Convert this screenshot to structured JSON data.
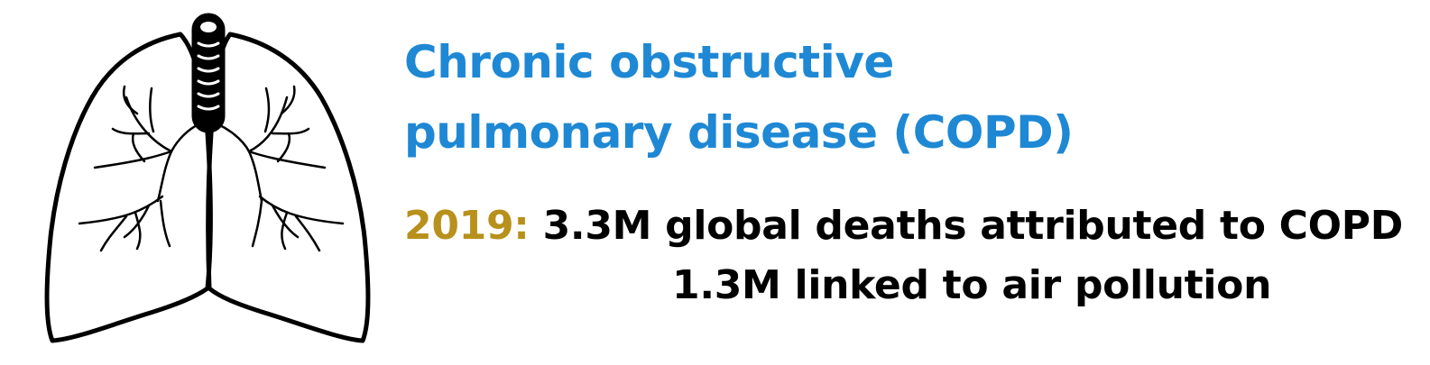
{
  "colors": {
    "title": "#1e88d4",
    "year": "#b8901c",
    "text": "#000000",
    "outline": "#000000"
  },
  "illustration": {
    "icon": "lungs-icon"
  },
  "title": {
    "line1": "Chronic obstructive",
    "line2": "pulmonary disease (COPD)"
  },
  "stats": {
    "year": "2019:",
    "line1": "3.3M global deaths attributed to COPD",
    "line2": "1.3M linked to air pollution"
  }
}
